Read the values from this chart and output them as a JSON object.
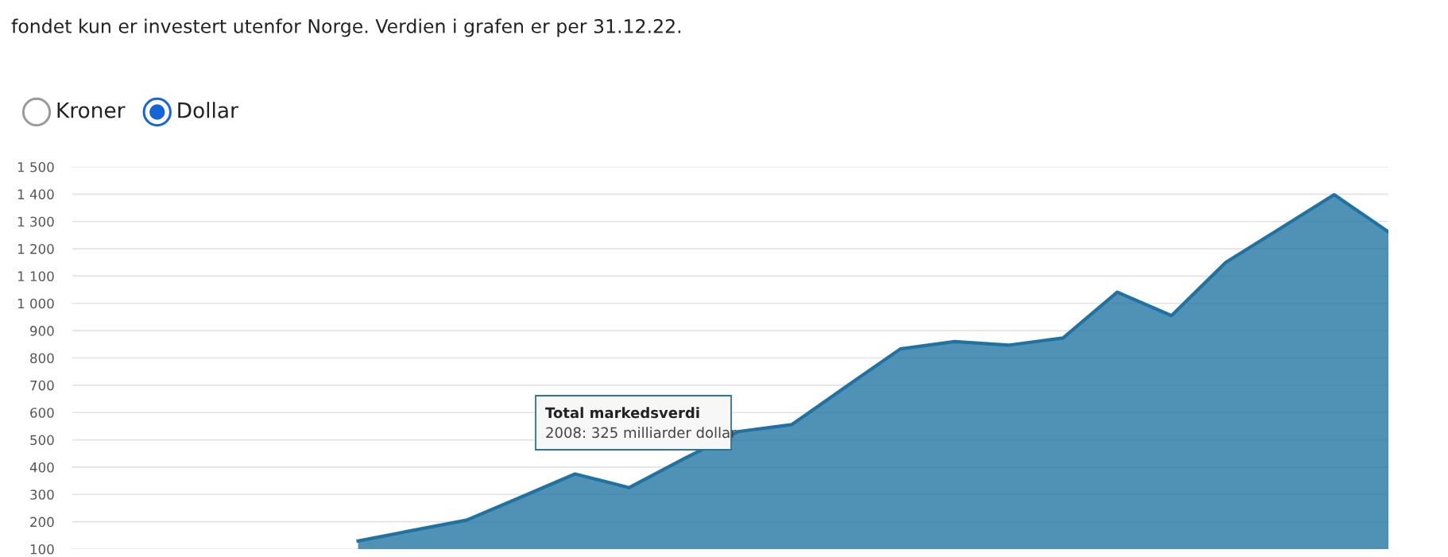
{
  "chart_data": {
    "type": "area",
    "subtitle": "fondet kun er investert utenfor Norge. Verdien i grafen er per 31.12.22.",
    "annotations": [
      "Kroner",
      "Dollar",
      "Total markedsverdi\n2008: 325 milliarder dollar"
    ],
    "categories": [
      null,
      null,
      null,
      null,
      null,
      null,
      null,
      null,
      null,
      null,
      null,
      null,
      null,
      null,
      null,
      null,
      null,
      null,
      null,
      null
    ],
    "series": [
      {
        "color": "#1f72a1",
        "values": [
          130,
          168,
          206,
          290,
          375,
          325,
          430,
          530,
          556,
          695,
          833,
          860,
          847,
          873,
          1041,
          955,
          1150,
          1274,
          1398,
          1262
        ]
      }
    ],
    "ylim": [
      100,
      1500
    ],
    "yticks": [
      {
        "value": 100,
        "label": "100"
      },
      {
        "value": 200,
        "label": "200"
      },
      {
        "value": 300,
        "label": "300"
      },
      {
        "value": 400,
        "label": "400"
      },
      {
        "value": 500,
        "label": "500"
      },
      {
        "value": 600,
        "label": "600"
      },
      {
        "value": 700,
        "label": "700"
      },
      {
        "value": 800,
        "label": "800"
      },
      {
        "value": 900,
        "label": "900"
      },
      {
        "value": 1000,
        "label": "1 000"
      },
      {
        "value": 1100,
        "label": "1 100"
      },
      {
        "value": 1200,
        "label": "1 200"
      },
      {
        "value": 1300,
        "label": "1 300"
      },
      {
        "value": 1400,
        "label": "1 400"
      },
      {
        "value": 1500,
        "label": "1 500"
      }
    ],
    "grid": "y",
    "tick_labels": "y",
    "marker": "none",
    "line_style": "solid",
    "legend": false
  }
}
